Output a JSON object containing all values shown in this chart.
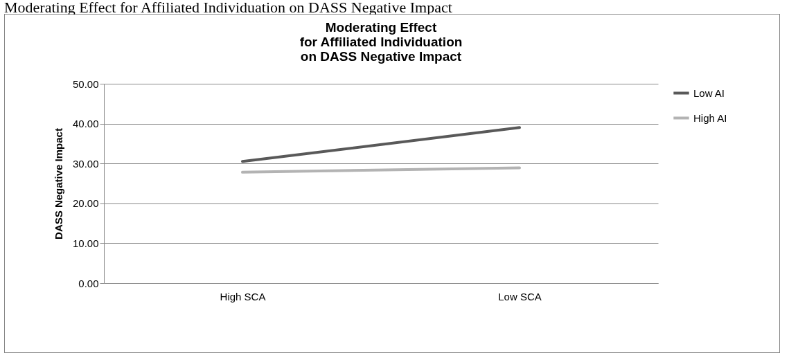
{
  "chart_data": {
    "type": "line",
    "title": "Moderating Effect\nfor Affiliated Individuation\non DASS Negative Impact",
    "ylabel": "DASS Negative Impact",
    "categories": [
      "High SCA",
      "Low SCA"
    ],
    "series": [
      {
        "name": "Low AI",
        "color": "#595959",
        "values": [
          30.5,
          39.0
        ]
      },
      {
        "name": "High AI",
        "color": "#b3b3b3",
        "values": [
          27.8,
          28.9
        ]
      }
    ],
    "ylim": [
      0,
      50
    ],
    "yticks": [
      {
        "value": 0,
        "label": "0.00"
      },
      {
        "value": 10,
        "label": "10.00"
      },
      {
        "value": 20,
        "label": "20.00"
      },
      {
        "value": 30,
        "label": "30.00"
      },
      {
        "value": 40,
        "label": "40.00"
      },
      {
        "value": 50,
        "label": "50.00"
      }
    ],
    "grid": "y",
    "legend": "right",
    "marker": "none",
    "line_style": "solid",
    "annotations": [
      "Moderating Effect for Affiliated Individuation on DASS Negative Impact"
    ]
  }
}
